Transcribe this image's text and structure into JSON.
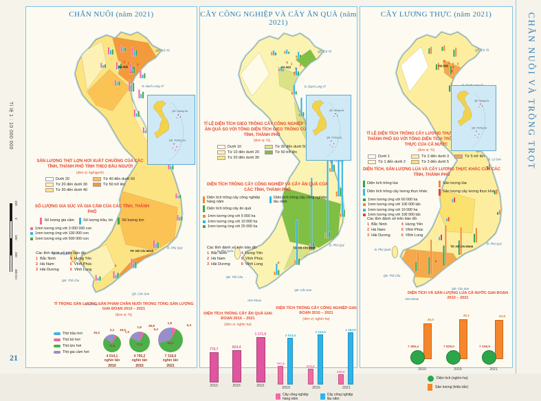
{
  "page": {
    "side_title": "CHĂN NUÔI VÀ TRỒNG TRỌT",
    "scale_label": "Tỉ lệ 1 : 10 000 000",
    "km_ticks": [
      "100",
      "0",
      "100",
      "200",
      "300 km"
    ],
    "page_number": "21"
  },
  "shared": {
    "provinces": {
      "heading": "Các tỉnh đánh số trên bản đồ:",
      "items": [
        {
          "num": "1",
          "name": "Bắc Ninh"
        },
        {
          "num": "2",
          "name": "Hà Nam"
        },
        {
          "num": "3",
          "name": "Hải Dương"
        },
        {
          "num": "4",
          "name": "Hưng Yên"
        },
        {
          "num": "5",
          "name": "Vĩnh Phúc"
        },
        {
          "num": "6",
          "name": "Vĩnh Long"
        }
      ]
    },
    "map_labels": {
      "cities": [
        "Hà Nội",
        "TP. Hồ Chí Minh"
      ],
      "islands": [
        "QĐ. Cô Tô",
        "Đ. Bạch Long Vĩ",
        "Đ. Cồn Cỏ",
        "Đ. Lý Sơn",
        "Đ. Phú Quý",
        "QĐ. Côn Sơn",
        "QĐ. Thổ Chu",
        "Đ. Phú Quốc",
        "Hòn Khoai"
      ],
      "inset": [
        "QĐ. Hoàng Sa",
        "QĐ. Trường Sa"
      ]
    }
  },
  "panel1": {
    "title": "CHĂN NUÔI (năm 2021)",
    "legend_area": {
      "title": "SẢN LƯỢNG THỊT LỢN HƠI XUẤT CHUỒNG CỦA CÁC TỈNH, THÀNH PHỐ TÍNH THEO ĐẦU NGƯỜI",
      "unit": "(đơn vị: kg/người)",
      "rows": 3,
      "items": [
        {
          "label": "Dưới 20",
          "color": "#ffffff"
        },
        {
          "label": "Từ 20 đến dưới 30",
          "color": "#fdf2b6"
        },
        {
          "label": "Từ 30 đến dưới 40",
          "color": "#fce483"
        },
        {
          "label": "Từ 40 đến dưới 50",
          "color": "#fbc254"
        },
        {
          "label": "Từ 50 trở lên",
          "color": "#f39a3c"
        }
      ]
    },
    "legend_bars": {
      "title": "SỐ LƯỢNG GIA SÚC VÀ GIA CẦM CỦA CÁC TỈNH, THÀNH PHỐ",
      "layout": "row",
      "items": [
        {
          "label": "Số lượng gia cầm",
          "color": "#f0699f"
        },
        {
          "label": "Số lượng trâu, bò",
          "color": "#3cb4e5"
        },
        {
          "label": "Số lượng lợn",
          "color": "#3da64b"
        }
      ],
      "scales": [
        {
          "label": "1mm tương ứng với 3 000 000 con",
          "color": "#f0699f"
        },
        {
          "label": "1mm tương ứng với 100 000 con",
          "color": "#3cb4e5"
        },
        {
          "label": "1mm tương ứng với 500 000 con",
          "color": "#3da64b"
        }
      ]
    },
    "pie_block": {
      "title": "TỈ TRỌNG SẢN LƯỢNG SẢN PHẨM CHĂN NUÔI TRONG TỔNG SẢN LƯỢNG GIAI ĐOẠN 2010 – 2021",
      "unit": "(đơn vị: %)",
      "slice_colors": [
        "#3cb4e5",
        "#f0699f",
        "#4db04a",
        "#9b8dc8"
      ],
      "legend": [
        {
          "label": "Thịt trâu hơi",
          "color": "#3cb4e5"
        },
        {
          "label": "Thịt bò hơi",
          "color": "#f0699f"
        },
        {
          "label": "Thịt lợn hơi",
          "color": "#4db04a"
        },
        {
          "label": "Thịt gia cầm hơi",
          "color": "#9b8dc8"
        }
      ],
      "pies": [
        {
          "year": "2010",
          "total": "4 014,1",
          "total_unit": "nghìn tấn",
          "values": [
            2.1,
            7.0,
            75.6,
            15.3
          ],
          "labels": [
            "2,1",
            "7,0",
            "75,6",
            "15,3"
          ]
        },
        {
          "year": "2015",
          "total": "4 795,2",
          "total_unit": "nghìn tấn",
          "values": [
            1.8,
            6.2,
            73.0,
            19.0
          ],
          "labels": [
            "1,8",
            "6,2",
            "73,0",
            "19,0"
          ]
        },
        {
          "year": "2021",
          "total": "7 318,6",
          "total_unit": "nghìn tấn",
          "values": [
            1.8,
            6.4,
            62.0,
            29.8
          ],
          "labels": [
            "1,8",
            "6,4",
            "62,0",
            "29,8"
          ]
        }
      ]
    }
  },
  "panel2": {
    "title": "CÂY CÔNG NGHIỆP VÀ CÂY ĂN QUẢ (năm 2021)",
    "legend_area": {
      "title": "TỈ LỆ DIỆN TÍCH GIEO TRỒNG CÂY CÔNG NGHIỆP VÀ CÂY ĂN QUẢ SO VỚI TỔNG DIỆN TÍCH GIEO TRỒNG CỦA CÁC TỈNH, THÀNH PHỐ",
      "unit": "(đơn vị: %)",
      "rows": 3,
      "items": [
        {
          "label": "Dưới 10",
          "color": "#fefce8"
        },
        {
          "label": "Từ 10 đến dưới 20",
          "color": "#faf3b1"
        },
        {
          "label": "Từ 20 đến dưới 30",
          "color": "#f5e97f"
        },
        {
          "label": "Từ 30 đến dưới 50",
          "color": "#d9e287"
        },
        {
          "label": "Từ 50 trở lên",
          "color": "#7fbf44"
        }
      ]
    },
    "legend_bars": {
      "title": "DIỆN TÍCH TRỒNG CÂY CÔNG NGHIỆP VÀ CÂY ĂN QUẢ CỦA CÁC TỈNH, THÀNH PHỐ",
      "layout": "grid2",
      "items": [
        {
          "label": "Diện tích trồng cây công nghiệp hàng năm",
          "color": "#f5862c"
        },
        {
          "label": "Diện tích trồng cây công nghiệp lâu năm",
          "color": "#2fb3e8"
        },
        {
          "label": "Diện tích trồng cây ăn quả",
          "color": "#3da64b"
        }
      ],
      "scales": [
        {
          "label": "1mm tương ứng với 5 000 ha",
          "color": "#f5862c"
        },
        {
          "label": "1mm tương ứng với 10 000 ha",
          "color": "#2fb3e8"
        },
        {
          "label": "1mm tương ứng với 25 000 ha",
          "color": "#3da64b"
        }
      ]
    },
    "fruit_chart": {
      "title": "DIỆN TÍCH TRỒNG CÂY ĂN QUẢ GIAI ĐOẠN 2010 – 2021",
      "unit": "(đơn vị: nghìn ha)",
      "color": "#e0559f",
      "years": [
        "2010",
        "2015",
        "2021"
      ],
      "values": [
        779.7,
        824.4,
        1171.5
      ],
      "labels": [
        "779,7",
        "824,4",
        "1 171,5"
      ]
    },
    "industrial_chart": {
      "title": "DIỆN TÍCH TRỒNG CÂY CÔNG NGHIỆP GIAI ĐOẠN 2010 – 2021",
      "unit": "(đơn vị: nghìn ha)",
      "years": [
        "2010",
        "2015",
        "2021"
      ],
      "series": [
        {
          "name": "Cây công nghiệp hàng năm",
          "color": "#f06ba5",
          "values": [
            797.6,
            676.8,
            425.9
          ],
          "labels": [
            "797,6",
            "676,8",
            "425,9"
          ]
        },
        {
          "name": "Cây công nghiệp lâu năm",
          "color": "#2fb3e8",
          "values": [
            2010.5,
            2154.5,
            2264.9
          ],
          "labels": [
            "2 010,5",
            "2 154,5",
            "2 264,9"
          ]
        }
      ]
    }
  },
  "panel3": {
    "title": "CÂY LƯƠNG THỰC (năm 2021)",
    "legend_area": {
      "title": "TỈ LỆ DIỆN TÍCH TRỒNG CÂY LƯƠNG THỰC CỦA CÁC TỈNH, THÀNH PHỐ SO VỚI TỔNG DIỆN TÍCH TRỒNG CÂY LƯƠNG THỰC CỦA CẢ NƯỚC",
      "unit": "(đơn vị: %)",
      "rows": 2,
      "items": [
        {
          "label": "Dưới 1",
          "color": "#ffffff"
        },
        {
          "label": "Từ 1 đến dưới 2",
          "color": "#fdf6cb"
        },
        {
          "label": "Từ 2 đến dưới 3",
          "color": "#fcee9e"
        },
        {
          "label": "Từ 3 đến dưới 5",
          "color": "#fbe26e"
        },
        {
          "label": "Từ 5 trở lên",
          "color": "#f5a94a"
        }
      ]
    },
    "legend_bars": {
      "title": "DIỆN TÍCH, SẢN LƯỢNG LÚA VÀ CÂY LƯƠNG THỰC KHÁC CỦA CÁC TỈNH, THÀNH PHỐ",
      "layout": "colmajor2",
      "items": [
        {
          "label": "Diện tích trồng lúa",
          "color": "#2ca64a"
        },
        {
          "label": "Diện tích trồng cây lương thực khác",
          "color": "#3cb4e5"
        },
        {
          "label": "Sản lượng lúa",
          "color": "#f5862c"
        },
        {
          "label": "Sản lượng cây lương thực khác",
          "color": "#e8413c"
        }
      ],
      "scales": [
        {
          "label": "1mm tương ứng với 60 000 ha",
          "color": "#2ca64a"
        },
        {
          "label": "1mm tương ứng với 100 000 tấn",
          "color": "#f5862c"
        },
        {
          "label": "1mm tương ứng với 10 000 ha",
          "color": "#3cb4e5"
        },
        {
          "label": "1mm tương ứng với 100 000 tấn",
          "color": "#e8413c"
        }
      ]
    },
    "rice_chart": {
      "title": "DIỆN TÍCH VÀ SẢN LƯỢNG LÚA CẢ NƯỚC GIAI ĐOẠN 2010 – 2021",
      "years": [
        "2010",
        "2015",
        "2021"
      ],
      "area_labels": [
        "7 489,4",
        "7 828,0",
        "7 238,9"
      ],
      "area_values": [
        7489.4,
        7828.0,
        7238.9
      ],
      "prod_labels": [
        "40,0",
        "45,1",
        "43,9"
      ],
      "prod_values": [
        40.0,
        45.1,
        43.9
      ],
      "legend": [
        {
          "label": "Diện tích (nghìn ha)",
          "color": "#2ca64a",
          "shape": "circle"
        },
        {
          "label": "Sản lượng (triệu tấn)",
          "color": "#f5862c",
          "shape": "square"
        }
      ]
    }
  }
}
